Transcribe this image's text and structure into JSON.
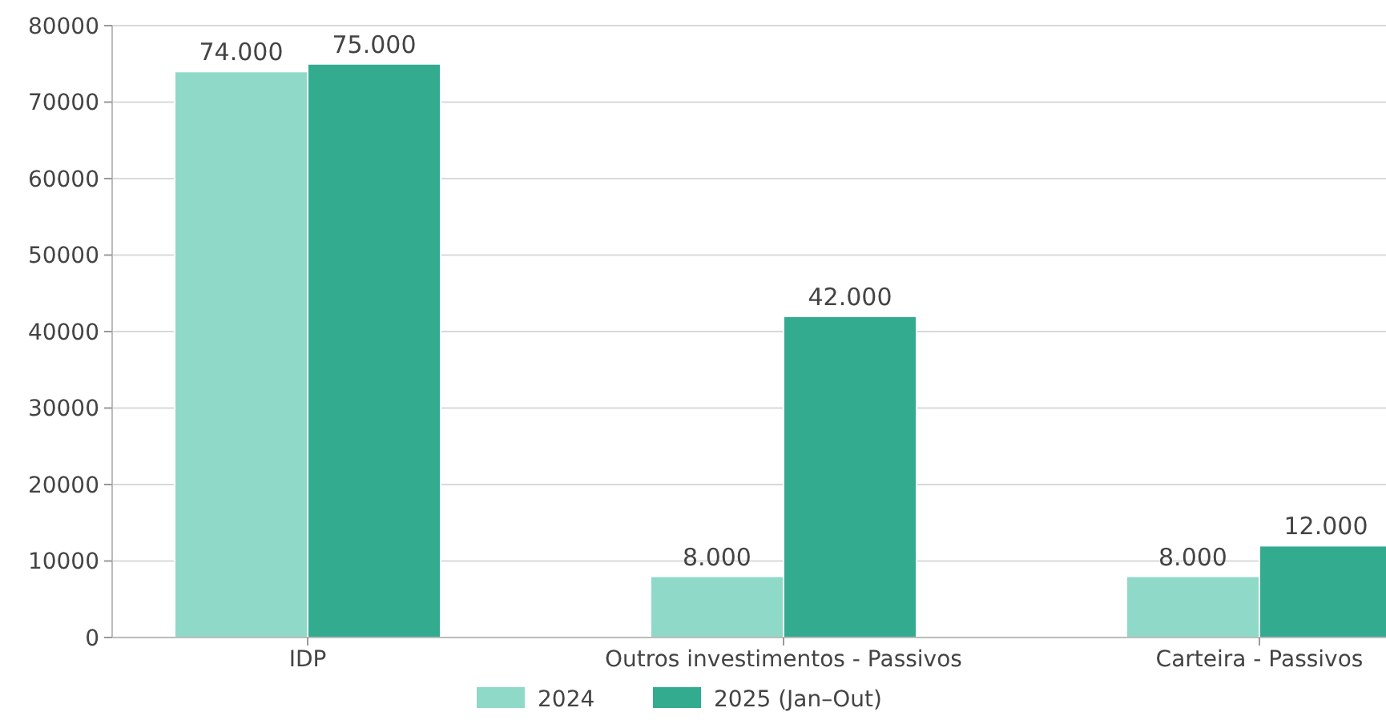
{
  "chart_data": {
    "type": "bar",
    "categories": [
      "IDP",
      "Outros investimentos - Passivos",
      "Carteira - Passivos"
    ],
    "series": [
      {
        "name": "2024",
        "color": "#8fd9c8",
        "values": [
          74000,
          8000,
          8000
        ],
        "value_labels": [
          "74.000",
          "8.000",
          "8.000"
        ]
      },
      {
        "name": "2025 (Jan–Out)",
        "color": "#33ab8f",
        "values": [
          75000,
          42000,
          12000
        ],
        "value_labels": [
          "75.000",
          "42.000",
          "12.000"
        ]
      }
    ],
    "ylim": [
      0,
      80000
    ],
    "yticks": [
      0,
      10000,
      20000,
      30000,
      40000,
      50000,
      60000,
      70000,
      80000
    ],
    "grid": "y",
    "legend": "bottom"
  }
}
